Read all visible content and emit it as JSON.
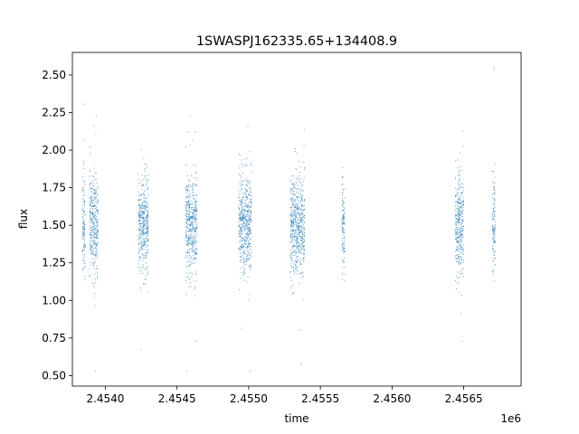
{
  "chart_data": {
    "type": "scatter",
    "title": "1SWASPJ162335.65+134408.9",
    "xlabel": "time",
    "ylabel": "flux",
    "x_offset_label": "1e6",
    "xlim": [
      2453770,
      2456900
    ],
    "ylim": [
      0.43,
      2.65
    ],
    "grid": false,
    "legend": "none",
    "marker_color": "#1f77b4",
    "x_ticks": [
      {
        "value": 2454000,
        "label": "2.4540"
      },
      {
        "value": 2454500,
        "label": "2.4545"
      },
      {
        "value": 2455000,
        "label": "2.4550"
      },
      {
        "value": 2455500,
        "label": "2.4555"
      },
      {
        "value": 2456000,
        "label": "2.4560"
      },
      {
        "value": 2456500,
        "label": "2.4565"
      }
    ],
    "y_ticks": [
      {
        "value": 0.5,
        "label": "0.50"
      },
      {
        "value": 0.75,
        "label": "0.75"
      },
      {
        "value": 1.0,
        "label": "1.00"
      },
      {
        "value": 1.25,
        "label": "1.25"
      },
      {
        "value": 1.5,
        "label": "1.50"
      },
      {
        "value": 1.75,
        "label": "1.75"
      },
      {
        "value": 2.0,
        "label": "2.00"
      },
      {
        "value": 2.25,
        "label": "2.25"
      },
      {
        "value": 2.5,
        "label": "2.50"
      }
    ],
    "series": [
      {
        "x_ranges": [
          [
            2453840,
            2453860
          ],
          [
            2453890,
            2453950
          ],
          [
            2454230,
            2454300
          ],
          [
            2454560,
            2454640
          ],
          [
            2454930,
            2455020
          ],
          [
            2455290,
            2455390
          ],
          [
            2455650,
            2455670
          ],
          [
            2456440,
            2456500
          ],
          [
            2456700,
            2456720
          ]
        ],
        "flux_center": 1.5,
        "flux_range": [
          0.53,
          2.55
        ]
      }
    ]
  }
}
